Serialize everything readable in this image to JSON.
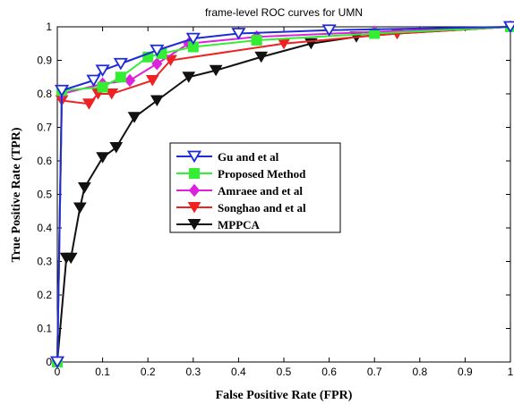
{
  "chart_data": {
    "type": "line",
    "title": "frame-level ROC curves for UMN",
    "xlabel": "False Positive Rate (FPR)",
    "ylabel": "True Positive Rate (TPR)",
    "xlim": [
      0,
      1
    ],
    "ylim": [
      0,
      1
    ],
    "xticks": [
      "0",
      "0.1",
      "0.2",
      "0.3",
      "0.4",
      "0.5",
      "0.6",
      "0.7",
      "0.8",
      "0.9",
      "1"
    ],
    "yticks": [
      "0",
      "0.1",
      "0.2",
      "0.3",
      "0.4",
      "0.5",
      "0.6",
      "0.7",
      "0.8",
      "0.9",
      "1"
    ],
    "grid": false,
    "legend_position": "center",
    "series": [
      {
        "name": "Gu and et al",
        "color": "#1f2bd8",
        "marker": "triangle-down-open",
        "x": [
          0,
          0.01,
          0.08,
          0.1,
          0.14,
          0.22,
          0.3,
          0.4,
          0.6,
          1.0
        ],
        "y": [
          0,
          0.81,
          0.84,
          0.87,
          0.89,
          0.93,
          0.965,
          0.98,
          0.99,
          1.0
        ]
      },
      {
        "name": "Proposed Method",
        "color": "#33ee33",
        "marker": "square",
        "x": [
          0,
          0.01,
          0.1,
          0.14,
          0.2,
          0.23,
          0.3,
          0.44,
          0.7,
          1.0
        ],
        "y": [
          0,
          0.81,
          0.82,
          0.85,
          0.91,
          0.92,
          0.94,
          0.96,
          0.98,
          1.0
        ]
      },
      {
        "name": "Amraee and et al",
        "color": "#dd22dd",
        "marker": "diamond",
        "x": [
          0,
          0.01,
          0.1,
          0.16,
          0.22,
          0.29,
          0.44,
          0.7,
          1.0
        ],
        "y": [
          0,
          0.8,
          0.83,
          0.84,
          0.89,
          0.95,
          0.97,
          0.985,
          1.0
        ]
      },
      {
        "name": "Songhao and et al",
        "color": "#ee2222",
        "marker": "triangle-down",
        "x": [
          0,
          0.01,
          0.07,
          0.09,
          0.12,
          0.21,
          0.25,
          0.5,
          0.75,
          1.0
        ],
        "y": [
          0,
          0.78,
          0.77,
          0.8,
          0.8,
          0.84,
          0.9,
          0.95,
          0.98,
          1.0
        ]
      },
      {
        "name": "MPPCA",
        "color": "#111111",
        "marker": "triangle-down",
        "x": [
          0,
          0.02,
          0.03,
          0.05,
          0.06,
          0.1,
          0.13,
          0.17,
          0.22,
          0.29,
          0.35,
          0.45,
          0.56,
          0.66,
          0.75,
          1.0
        ],
        "y": [
          0,
          0.31,
          0.31,
          0.46,
          0.52,
          0.61,
          0.64,
          0.73,
          0.78,
          0.85,
          0.87,
          0.91,
          0.95,
          0.97,
          0.98,
          1.0
        ]
      }
    ]
  }
}
